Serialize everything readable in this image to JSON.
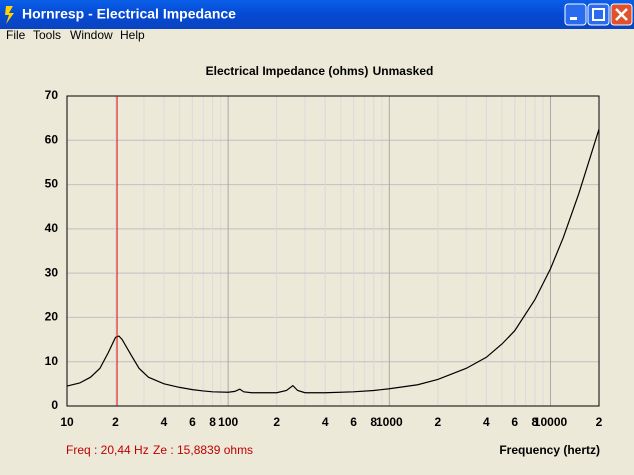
{
  "window": {
    "title": "Hornresp - Electrical Impedance"
  },
  "menu": [
    "File",
    "Tools",
    "Window",
    "Help"
  ],
  "chart_data": {
    "type": "line",
    "title": "Electrical Impedance (ohms)",
    "subtitle": "Unmasked",
    "x_label": "Frequency (hertz)",
    "log_x": true,
    "grid": true,
    "minor_grid": true,
    "xlim": [
      10,
      20000
    ],
    "ylim": [
      0,
      70
    ],
    "xticks": [
      10,
      {
        "value": 20,
        "label": "2"
      },
      {
        "value": 40,
        "label": "4"
      },
      {
        "value": 60,
        "label": "6"
      },
      {
        "value": 80,
        "label": "8"
      },
      100,
      {
        "value": 200,
        "label": "2"
      },
      {
        "value": 400,
        "label": "4"
      },
      {
        "value": 600,
        "label": "6"
      },
      {
        "value": 800,
        "label": "8"
      },
      1000,
      {
        "value": 2000,
        "label": "2"
      },
      {
        "value": 4000,
        "label": "4"
      },
      {
        "value": 6000,
        "label": "6"
      },
      {
        "value": 8000,
        "label": "8"
      },
      10000,
      {
        "value": 20000,
        "label": "2"
      }
    ],
    "yticks": [
      0,
      10,
      20,
      30,
      40,
      50,
      60,
      70
    ],
    "x": [
      10,
      12,
      14,
      16,
      18,
      20,
      21,
      22,
      25,
      28,
      32,
      40,
      50,
      60,
      70,
      80,
      100,
      110,
      118,
      125,
      140,
      200,
      230,
      252,
      270,
      300,
      400,
      600,
      800,
      1000,
      1500,
      2000,
      3000,
      4000,
      5000,
      6000,
      8000,
      10000,
      12000,
      15000,
      20000
    ],
    "series": [
      {
        "color": "#000000",
        "values": [
          4.5,
          5.2,
          6.5,
          8.5,
          12,
          15.5,
          15.8,
          15,
          11.5,
          8.5,
          6.5,
          5,
          4.2,
          3.7,
          3.4,
          3.2,
          3.1,
          3.3,
          3.8,
          3.2,
          3.0,
          3.0,
          3.5,
          4.6,
          3.5,
          3.0,
          3.0,
          3.2,
          3.5,
          3.9,
          4.8,
          6,
          8.5,
          11,
          14,
          17,
          24,
          31,
          38,
          48,
          62.5
        ]
      }
    ],
    "cursor_x": 20.44,
    "cursor_color": "#e00000",
    "status": {
      "freq": "Freq : 20,44 Hz",
      "ze": "Ze : 15,8839 ohms"
    }
  }
}
